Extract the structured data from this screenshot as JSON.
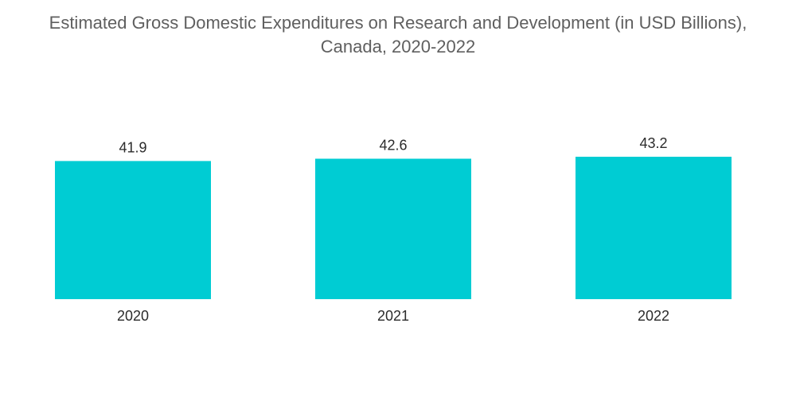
{
  "chart_data": {
    "type": "bar",
    "title_line1": "Estimated Gross Domestic Expenditures on Research and Development (in USD Billions),",
    "title_line2": "Canada, 2020-2022",
    "categories": [
      "2020",
      "2021",
      "2022"
    ],
    "values": [
      41.9,
      42.6,
      43.2
    ],
    "value_labels": [
      "41.9",
      "42.6",
      "43.2"
    ],
    "xlabel": "",
    "ylabel": "",
    "ylim": [
      0,
      43.2
    ],
    "grid": false,
    "legend": "none",
    "bar_color": "#00ccd3"
  }
}
